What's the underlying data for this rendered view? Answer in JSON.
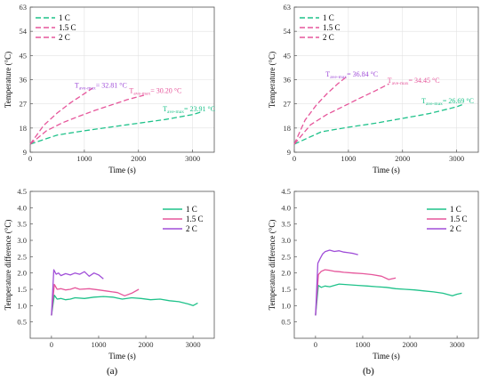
{
  "colors": {
    "c1": "#1fc28a",
    "c15": "#e6569b",
    "c2": "#a04ed8"
  },
  "panel_labels": [
    "(a)",
    "(b)"
  ],
  "chart_data": [
    {
      "id": "a-top",
      "type": "line",
      "title": "",
      "xlabel": "Time (s)",
      "ylabel": "Temperature (°C)",
      "xlim": [
        0,
        3400
      ],
      "ylim": [
        9,
        63
      ],
      "xticks": [
        0,
        1000,
        2000,
        3000
      ],
      "yticks": [
        9,
        18,
        27,
        36,
        45,
        54,
        63
      ],
      "grid": true,
      "legend": "top-left",
      "line_style": "dashed",
      "series": [
        {
          "name": "1 C",
          "color": "#1fc28a",
          "x": [
            0,
            500,
            1000,
            1500,
            2000,
            2500,
            3000,
            3150
          ],
          "y": [
            12.0,
            15.4,
            17.0,
            18.4,
            19.8,
            21.2,
            23.0,
            23.91
          ]
        },
        {
          "name": "1.5 C",
          "color": "#e6569b",
          "x": [
            0,
            300,
            600,
            900,
            1200,
            1500,
            1800,
            2100
          ],
          "y": [
            12.0,
            17.0,
            20.0,
            22.4,
            24.6,
            26.6,
            28.6,
            30.2
          ]
        },
        {
          "name": "2 C",
          "color": "#e6569b",
          "x": [
            0,
            250,
            500,
            750,
            1000,
            1150
          ],
          "y": [
            12.0,
            19.0,
            23.6,
            27.5,
            30.8,
            32.81
          ]
        }
      ],
      "annotations": [
        {
          "main": "T",
          "sub": "ave-max",
          "value": "= 32.81 °C",
          "x": 820,
          "y": 33.0,
          "color": "#a04ed8"
        },
        {
          "main": "T",
          "sub": "ave-max",
          "value": "= 30.20 °C",
          "x": 1830,
          "y": 31.0,
          "color": "#e6569b"
        },
        {
          "main": "T",
          "sub": "ave-max",
          "value": "= 23.91 °C",
          "x": 2450,
          "y": 24.2,
          "color": "#1fc28a"
        }
      ]
    },
    {
      "id": "b-top",
      "type": "line",
      "title": "",
      "xlabel": "Time (s)",
      "ylabel": "Temperature (°C)",
      "xlim": [
        0,
        3400
      ],
      "ylim": [
        9,
        63
      ],
      "xticks": [
        0,
        1000,
        2000,
        3000
      ],
      "yticks": [
        9,
        18,
        27,
        36,
        45,
        54,
        63
      ],
      "grid": true,
      "legend": "top-left",
      "line_style": "dashed",
      "series": [
        {
          "name": "1 C",
          "color": "#1fc28a",
          "x": [
            0,
            500,
            1000,
            1500,
            2000,
            2500,
            3000,
            3100
          ],
          "y": [
            12.0,
            16.6,
            18.3,
            19.8,
            21.6,
            23.4,
            25.9,
            26.69
          ]
        },
        {
          "name": "1.5 C",
          "color": "#e6569b",
          "x": [
            0,
            300,
            600,
            900,
            1200,
            1500,
            1750
          ],
          "y": [
            12.0,
            19.2,
            23.0,
            26.0,
            29.0,
            31.9,
            34.45
          ]
        },
        {
          "name": "2 C",
          "color": "#e6569b",
          "x": [
            0,
            200,
            400,
            600,
            800,
            950
          ],
          "y": [
            12.0,
            21.0,
            26.4,
            30.7,
            34.4,
            36.84
          ]
        }
      ],
      "annotations": [
        {
          "main": "T",
          "sub": "ave-max",
          "value": "= 36.84 °C",
          "x": 580,
          "y": 37.2,
          "color": "#a04ed8"
        },
        {
          "main": "T",
          "sub": "ave-max",
          "value": "= 34.45 °C",
          "x": 1720,
          "y": 34.8,
          "color": "#e6569b"
        },
        {
          "main": "T",
          "sub": "ave-max",
          "value": "= 26.69 °C",
          "x": 2350,
          "y": 27.2,
          "color": "#1fc28a"
        }
      ]
    },
    {
      "id": "a-bottom",
      "type": "line",
      "title": "",
      "xlabel": "Time (s)",
      "ylabel": "Temperature difference (°C)",
      "xlim": [
        -450,
        3450
      ],
      "ylim": [
        0,
        4.5
      ],
      "xticks": [
        0,
        1000,
        2000,
        3000
      ],
      "yticks": [
        0.5,
        1.0,
        1.5,
        2.0,
        2.5,
        3.0,
        3.5,
        4.0,
        4.5
      ],
      "grid": false,
      "legend": "top-right",
      "line_style": "solid",
      "series": [
        {
          "name": "1 C",
          "color": "#1fc28a",
          "x": [
            0,
            60,
            120,
            200,
            300,
            400,
            500,
            700,
            900,
            1100,
            1300,
            1500,
            1700,
            1900,
            2100,
            2300,
            2500,
            2700,
            2900,
            3000,
            3100
          ],
          "y": [
            0.7,
            1.32,
            1.2,
            1.22,
            1.18,
            1.2,
            1.24,
            1.22,
            1.26,
            1.28,
            1.26,
            1.2,
            1.24,
            1.22,
            1.18,
            1.2,
            1.15,
            1.12,
            1.05,
            1.0,
            1.08
          ]
        },
        {
          "name": "1.5 C",
          "color": "#e6569b",
          "x": [
            0,
            60,
            120,
            200,
            300,
            400,
            500,
            600,
            800,
            1000,
            1200,
            1400,
            1550,
            1700,
            1850
          ],
          "y": [
            0.7,
            1.65,
            1.5,
            1.52,
            1.48,
            1.5,
            1.55,
            1.5,
            1.52,
            1.48,
            1.44,
            1.4,
            1.3,
            1.38,
            1.5
          ]
        },
        {
          "name": "2 C",
          "color": "#a04ed8",
          "x": [
            0,
            50,
            100,
            150,
            200,
            300,
            400,
            500,
            600,
            700,
            800,
            900,
            1000,
            1100
          ],
          "y": [
            0.7,
            2.1,
            1.96,
            2.0,
            1.92,
            1.98,
            1.94,
            2.0,
            1.96,
            2.04,
            1.9,
            2.0,
            1.94,
            1.82
          ]
        }
      ]
    },
    {
      "id": "b-bottom",
      "type": "line",
      "title": "",
      "xlabel": "Time (s)",
      "ylabel": "Temperature difference (°C)",
      "xlim": [
        -450,
        3450
      ],
      "ylim": [
        0,
        4.5
      ],
      "xticks": [
        0,
        1000,
        2000,
        3000
      ],
      "yticks": [
        0.5,
        1.0,
        1.5,
        2.0,
        2.5,
        3.0,
        3.5,
        4.0,
        4.5
      ],
      "grid": false,
      "legend": "top-right",
      "line_style": "solid",
      "series": [
        {
          "name": "1 C",
          "color": "#1fc28a",
          "x": [
            0,
            60,
            120,
            200,
            300,
            400,
            500,
            700,
            900,
            1100,
            1300,
            1500,
            1700,
            1900,
            2100,
            2300,
            2500,
            2700,
            2900,
            3000,
            3100
          ],
          "y": [
            0.7,
            1.62,
            1.56,
            1.6,
            1.58,
            1.62,
            1.66,
            1.64,
            1.62,
            1.6,
            1.58,
            1.56,
            1.52,
            1.5,
            1.48,
            1.45,
            1.42,
            1.38,
            1.3,
            1.35,
            1.38
          ]
        },
        {
          "name": "1.5 C",
          "color": "#e6569b",
          "x": [
            0,
            60,
            120,
            200,
            300,
            400,
            500,
            600,
            800,
            1000,
            1200,
            1400,
            1550,
            1700
          ],
          "y": [
            0.7,
            1.95,
            2.05,
            2.1,
            2.08,
            2.05,
            2.04,
            2.02,
            2.0,
            1.98,
            1.95,
            1.9,
            1.8,
            1.85
          ]
        },
        {
          "name": "2 C",
          "color": "#a04ed8",
          "x": [
            0,
            50,
            100,
            150,
            200,
            300,
            400,
            500,
            600,
            700,
            800,
            900
          ],
          "y": [
            0.7,
            2.3,
            2.45,
            2.58,
            2.65,
            2.7,
            2.66,
            2.68,
            2.64,
            2.62,
            2.6,
            2.56
          ]
        }
      ]
    }
  ]
}
